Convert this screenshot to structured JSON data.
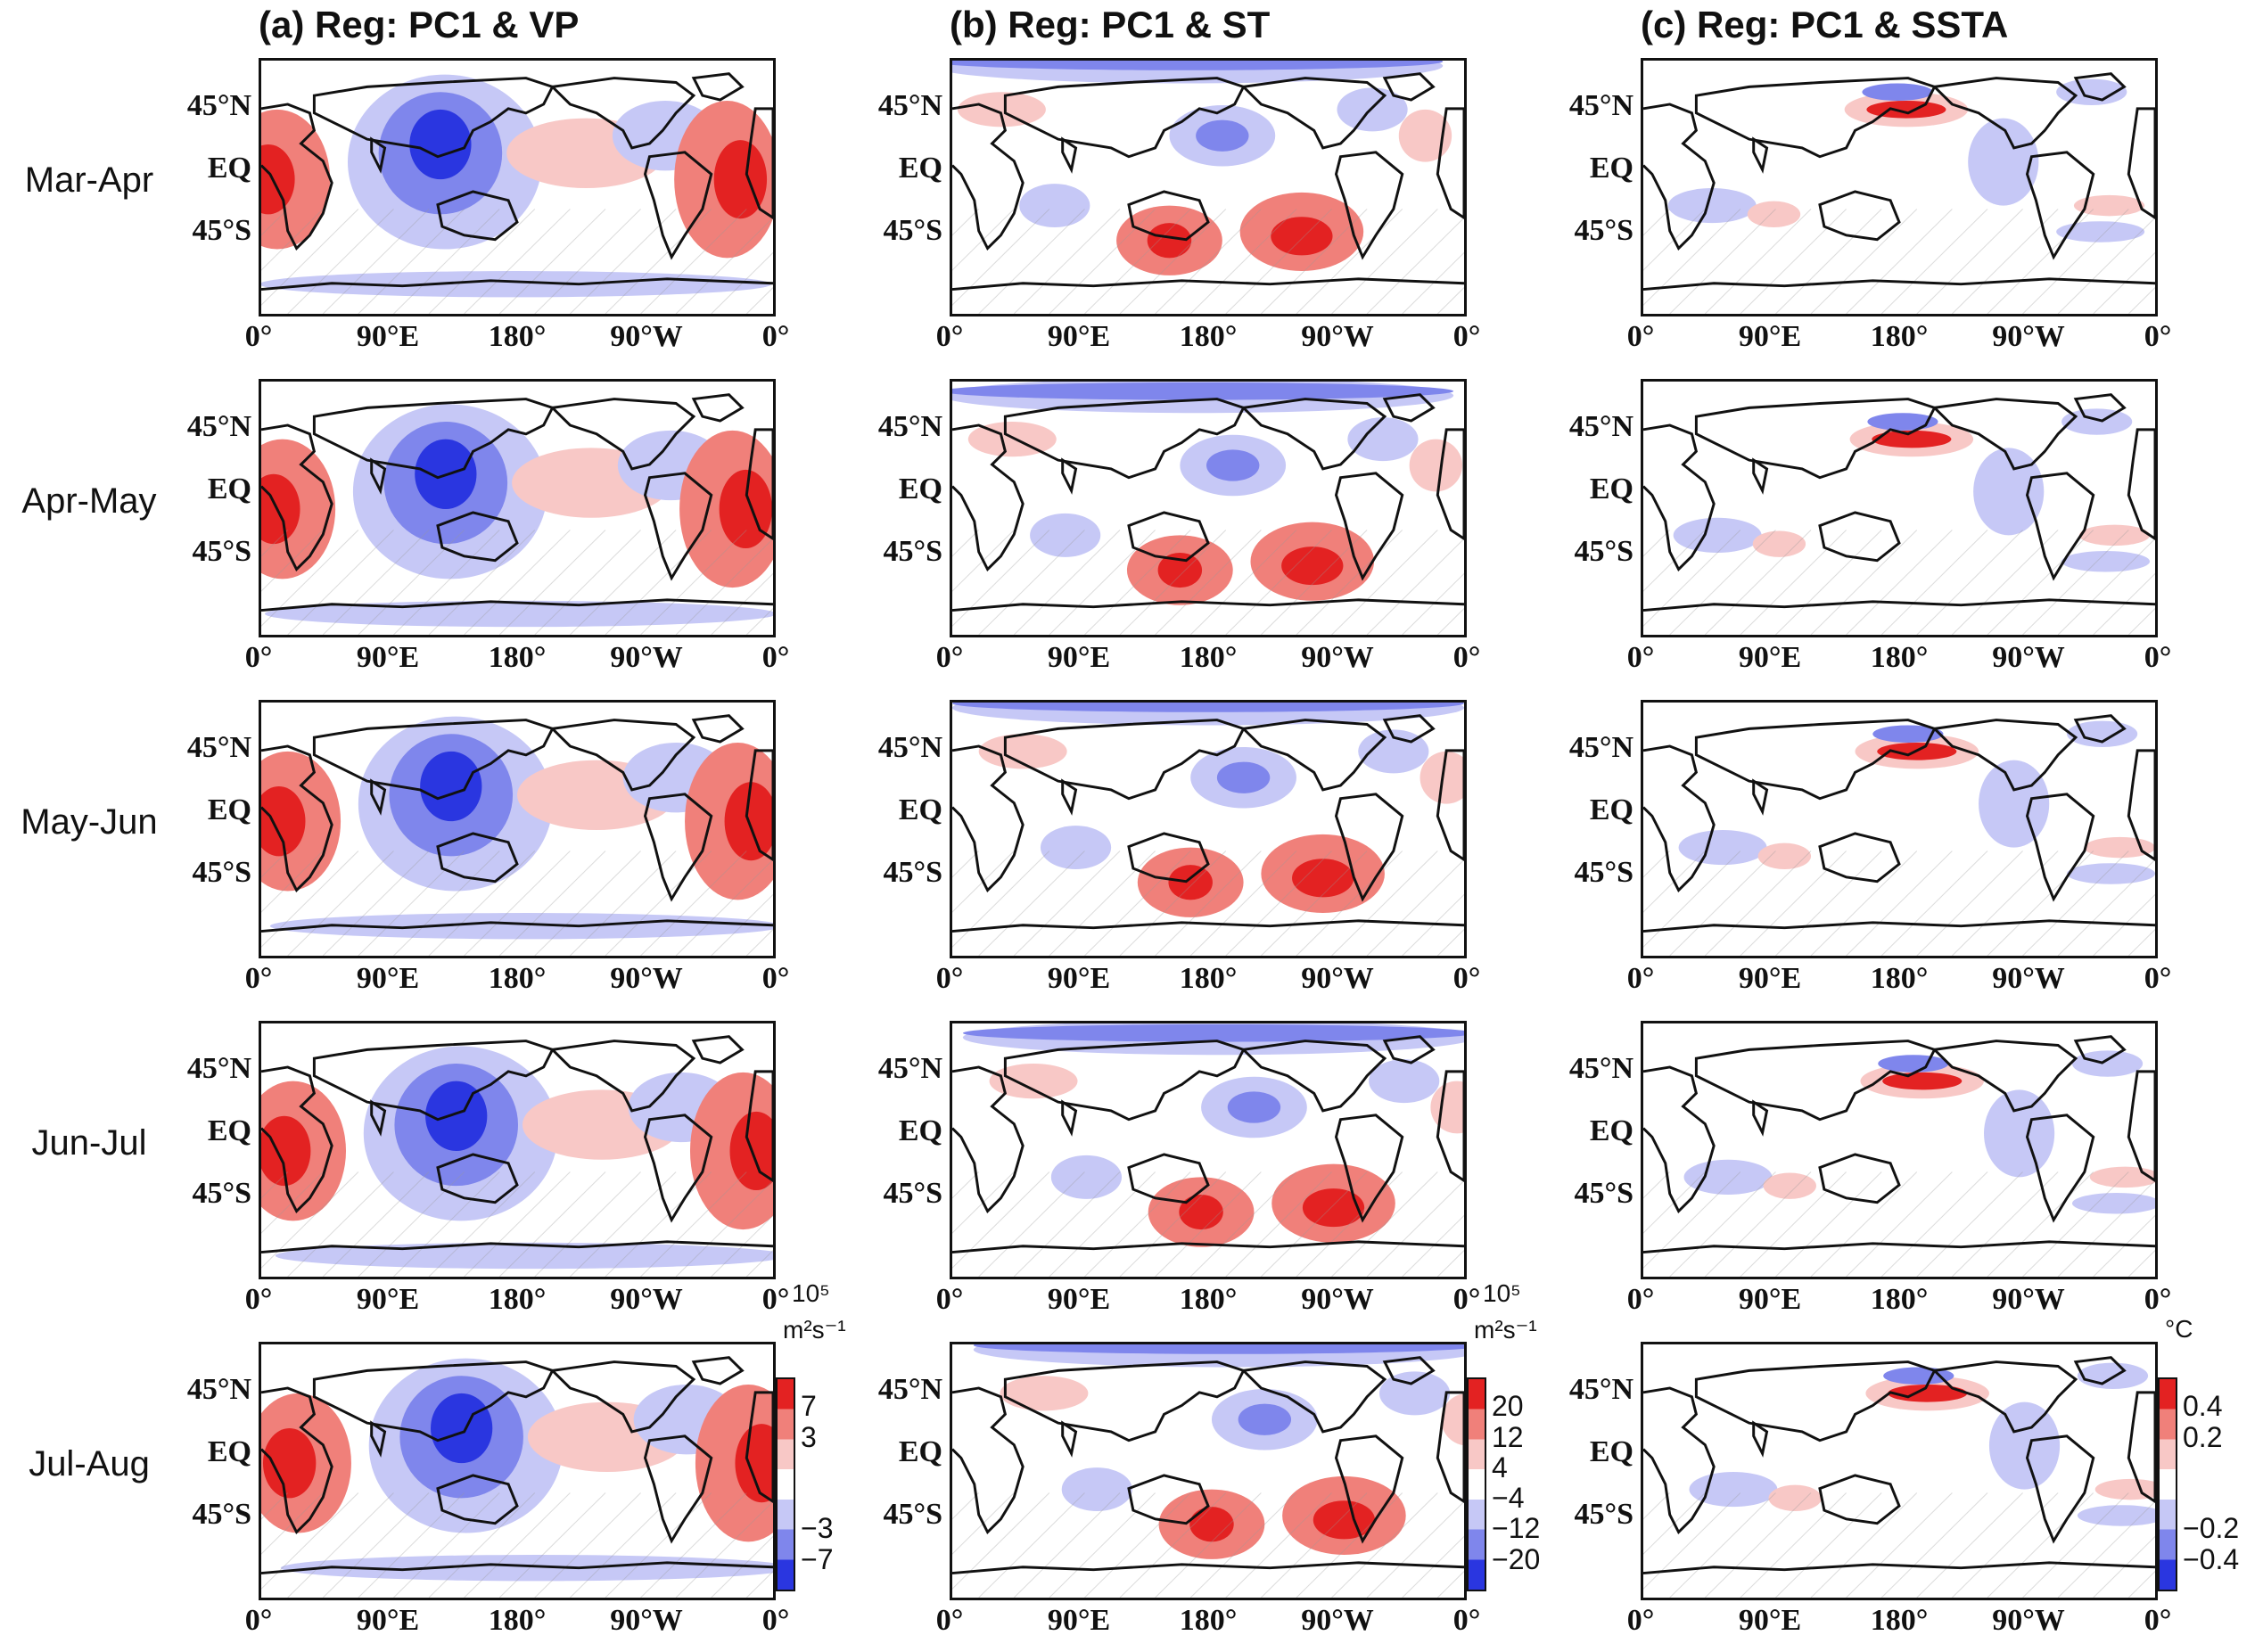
{
  "figure": {
    "columns": [
      {
        "id": "a",
        "title": "(a) Reg: PC1 & VP"
      },
      {
        "id": "b",
        "title": "(b) Reg: PC1 & ST"
      },
      {
        "id": "c",
        "title": "(c) Reg: PC1 & SSTA"
      }
    ],
    "rows": [
      "Mar-Apr",
      "Apr-May",
      "May-Jun",
      "Jun-Jul",
      "Jul-Aug"
    ],
    "lat_labels": [
      "45°N",
      "EQ",
      "45°S"
    ],
    "lon_labels": [
      "0°",
      "90°E",
      "180°",
      "90°W",
      "0°"
    ],
    "colorbars": [
      {
        "unit_top": "10⁵",
        "unit": "m²s⁻¹",
        "ticks": [
          "7",
          "3",
          "−3",
          "−7"
        ]
      },
      {
        "unit_top": "10⁵",
        "unit": "m²s⁻¹",
        "ticks": [
          "20",
          "12",
          "4",
          "−4",
          "−12",
          "−20"
        ]
      },
      {
        "unit_top": "",
        "unit": "°C",
        "ticks": [
          "0.4",
          "0.2",
          "−0.2",
          "−0.4"
        ]
      }
    ],
    "colors": {
      "red_dark": "#e32222",
      "red_mid": "#f0807a",
      "red_light": "#f8c8c6",
      "blue_light": "#c6c8f6",
      "blue_mid": "#7f86ec",
      "blue_dark": "#2a36e0",
      "white": "#ffffff",
      "coast": "#111111"
    }
  }
}
